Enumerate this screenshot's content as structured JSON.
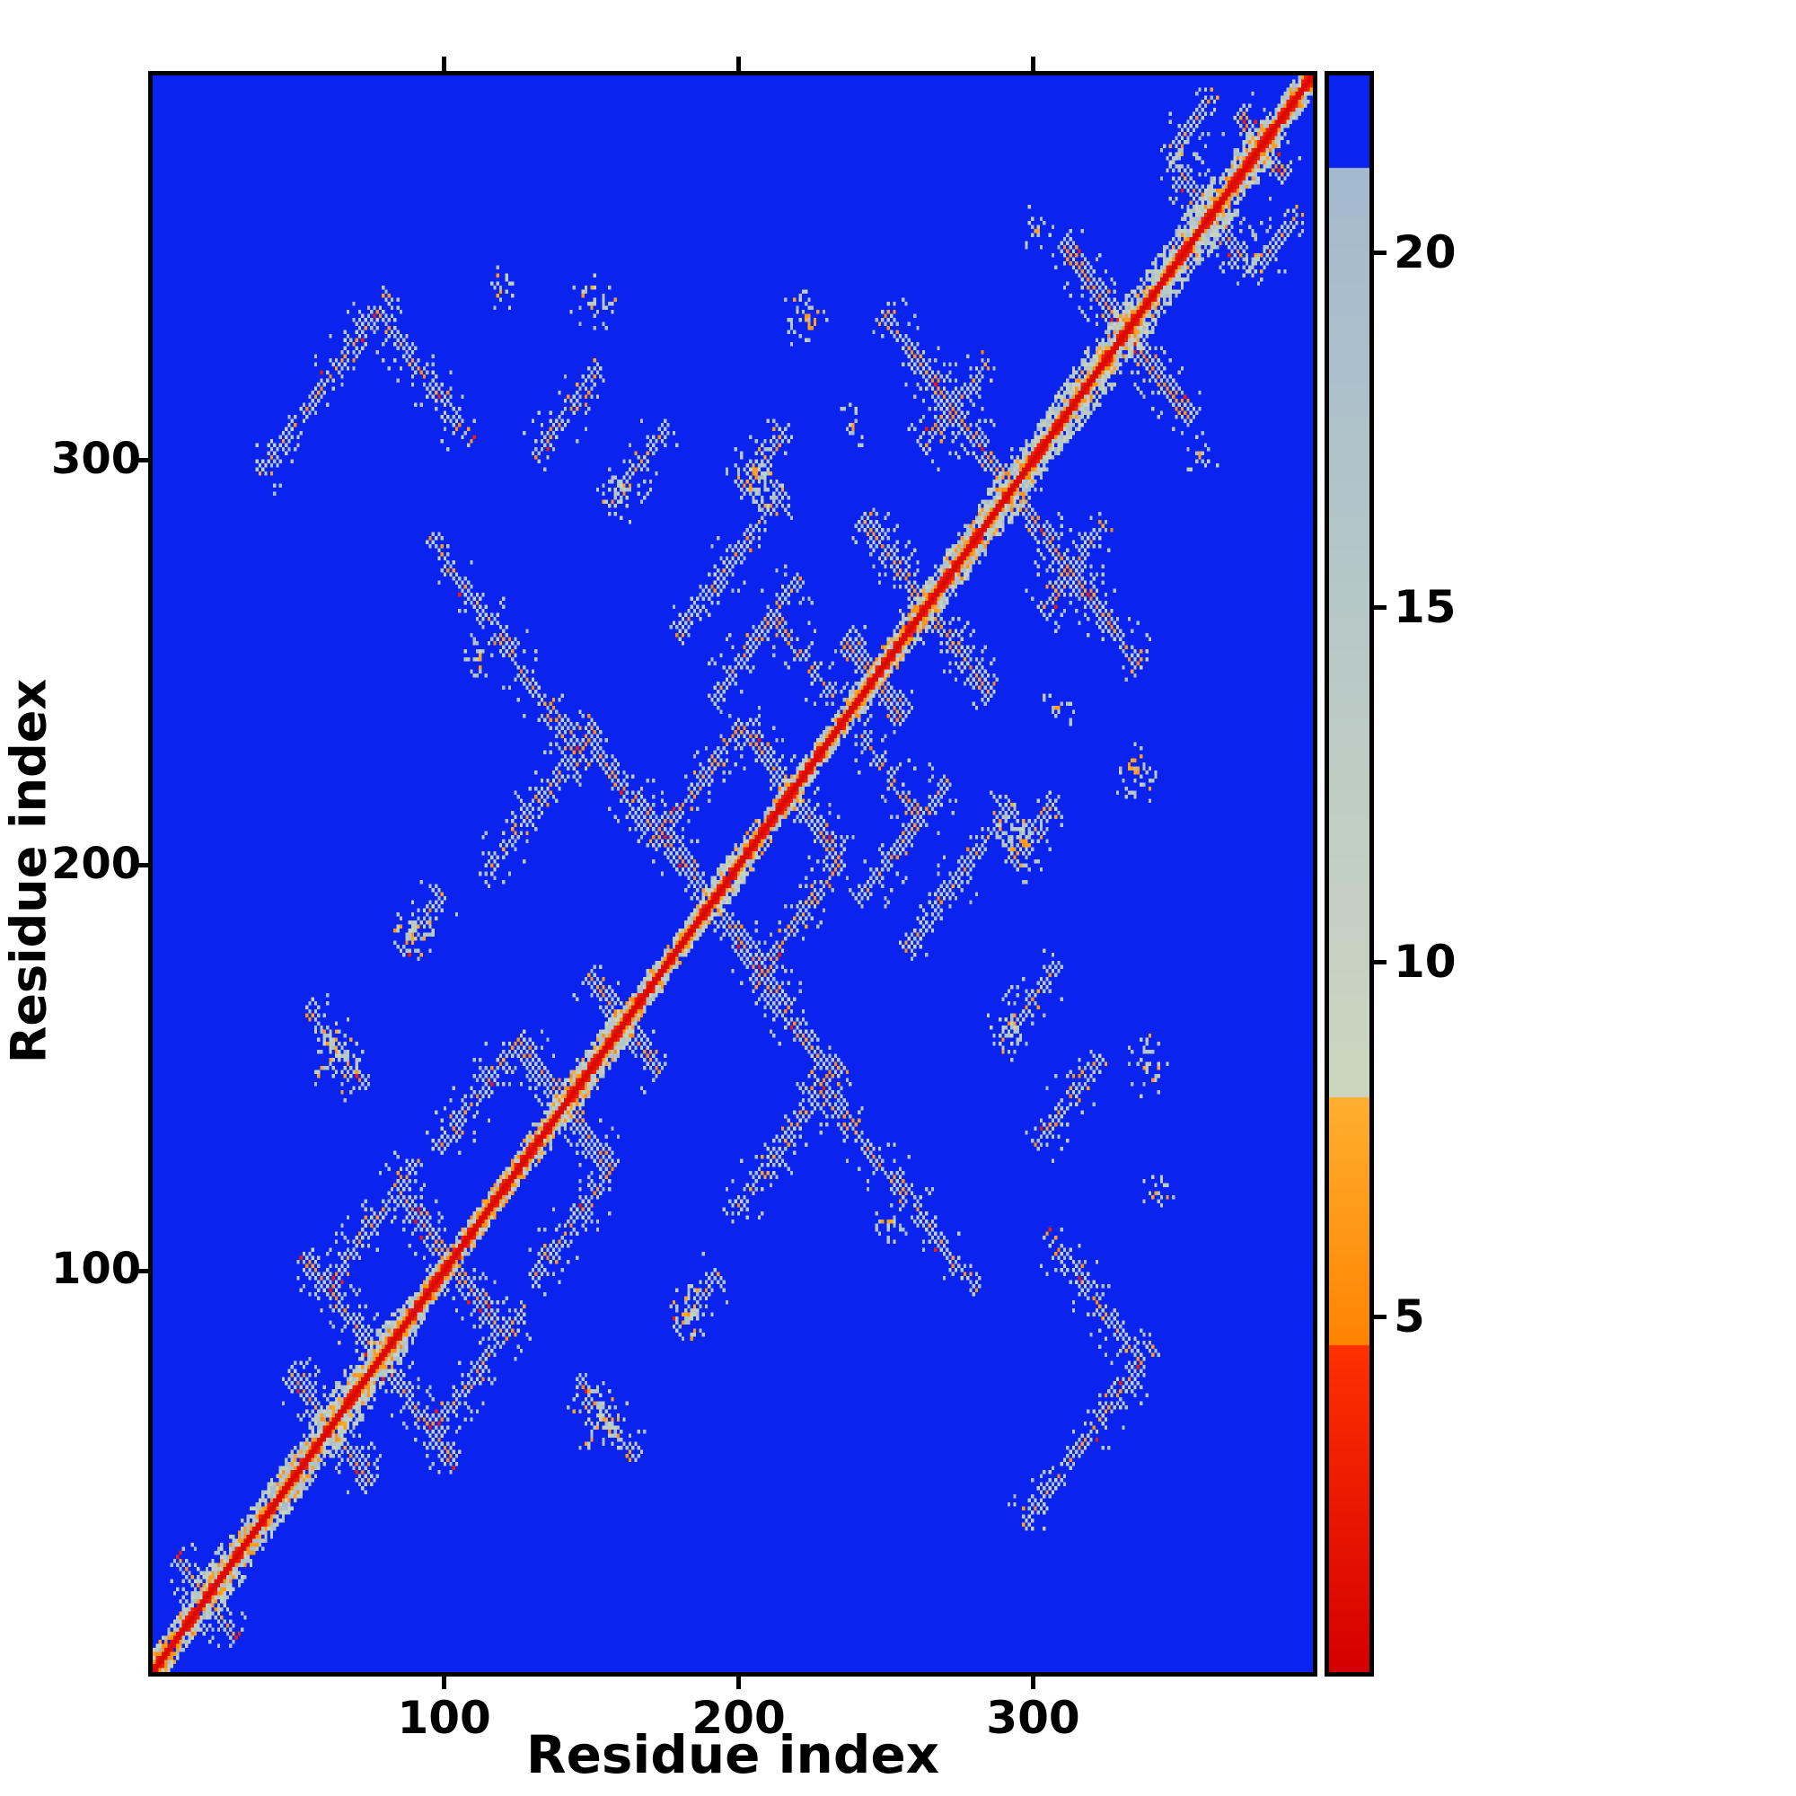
{
  "chart_data": {
    "type": "heatmap",
    "title": "",
    "xlabel": "Residue index",
    "ylabel": "Residue index",
    "x_range": [
      1,
      395
    ],
    "y_range": [
      1,
      395
    ],
    "x_ticks": [
      100,
      200,
      300
    ],
    "y_ticks": [
      100,
      200,
      300
    ],
    "n_residues": 395,
    "grid": false,
    "background_color": "#0b23ee",
    "diagonal_color": "#e30000",
    "colorbar": {
      "position": "right",
      "ticks": [
        5,
        10,
        15,
        20
      ],
      "vmin": 0,
      "vmax": 22.5,
      "segments": [
        {
          "from": 0,
          "to": 4.6,
          "color_from": "#d40000",
          "color_to": "#ff3000"
        },
        {
          "from": 4.6,
          "to": 8.1,
          "color_from": "#ff8400",
          "color_to": "#ffae30"
        },
        {
          "from": 8.1,
          "to": 21.2,
          "color_from": "#ccd6bf",
          "color_to": "#a3bace"
        },
        {
          "from": 21.2,
          "to": 22.5,
          "color_from": "#0b23ee",
          "color_to": "#0b23ee"
        }
      ]
    },
    "diagonal_band_halfwidth": 7,
    "hairpin_crossings": [
      [
        18,
        10
      ],
      [
        60,
        14
      ],
      [
        77,
        26
      ],
      [
        101,
        17
      ],
      [
        140,
        16
      ],
      [
        160,
        12
      ],
      [
        190,
        26
      ],
      [
        217,
        16
      ],
      [
        245,
        10
      ],
      [
        263,
        22
      ],
      [
        292,
        34
      ],
      [
        331,
        22
      ],
      [
        360,
        13
      ],
      [
        377,
        8
      ]
    ],
    "contact_stripes": [
      [
        36,
        296,
        44,
        1
      ],
      [
        74,
        338,
        34,
        -1
      ],
      [
        130,
        300,
        22,
        1
      ],
      [
        178,
        256,
        36,
        1
      ],
      [
        94,
        280,
        28,
        -1
      ],
      [
        118,
        254,
        30,
        -1
      ],
      [
        112,
        196,
        38,
        1
      ],
      [
        148,
        230,
        24,
        -1
      ],
      [
        60,
        96,
        30,
        1
      ],
      [
        96,
        128,
        26,
        1
      ],
      [
        172,
        206,
        28,
        1
      ],
      [
        190,
        240,
        30,
        1
      ],
      [
        210,
        262,
        22,
        -1
      ],
      [
        155,
        288,
        20,
        1
      ],
      [
        248,
        336,
        22,
        -1
      ],
      [
        262,
        302,
        22,
        1
      ],
      [
        52,
        164,
        20,
        -1
      ],
      [
        200,
        292,
        16,
        1
      ],
      [
        84,
        178,
        14,
        1
      ],
      [
        345,
        374,
        16,
        1
      ]
    ],
    "sparse_clusters": [
      [
        62,
        152,
        10
      ],
      [
        88,
        183,
        8
      ],
      [
        160,
        292,
        8
      ],
      [
        205,
        296,
        10
      ],
      [
        238,
        308,
        6
      ],
      [
        118,
        342,
        6
      ],
      [
        150,
        338,
        8
      ],
      [
        222,
        335,
        9
      ],
      [
        300,
        356,
        6
      ],
      [
        110,
        250,
        6
      ]
    ],
    "seed": 7
  }
}
